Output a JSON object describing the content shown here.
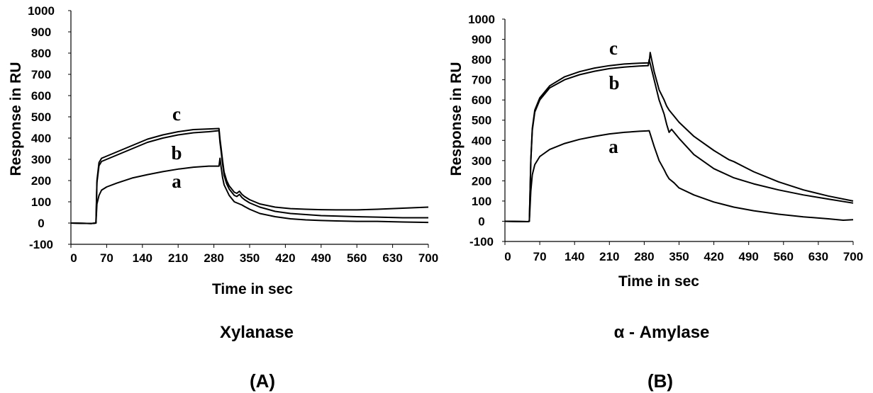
{
  "colors": {
    "line": "#000000",
    "axis": "#000000",
    "background": "#ffffff"
  },
  "chart_data": [
    {
      "type": "line",
      "panel_label": "(A)",
      "name": "Xylanase",
      "xlabel": "Time in sec",
      "ylabel": "Response in RU",
      "xlim": [
        0,
        700
      ],
      "ylim": [
        -100,
        1000
      ],
      "xticks": [
        "0",
        "70",
        "140",
        "210",
        "280",
        "350",
        "420",
        "490",
        "560",
        "630",
        "700"
      ],
      "yticks": [
        "-100",
        "0",
        "100",
        "200",
        "300",
        "400",
        "500",
        "600",
        "700",
        "800",
        "900",
        "1000"
      ],
      "grid": false,
      "series": [
        {
          "name": "a",
          "x": [
            0,
            40,
            49,
            51,
            55,
            60,
            70,
            90,
            120,
            150,
            180,
            210,
            240,
            270,
            290,
            292,
            294,
            297,
            300,
            305,
            310,
            320,
            325,
            330,
            335,
            340,
            350,
            370,
            400,
            430,
            460,
            490,
            520,
            560,
            600,
            650,
            700
          ],
          "y": [
            0,
            -2,
            0,
            90,
            130,
            155,
            170,
            188,
            212,
            228,
            242,
            254,
            263,
            268,
            268,
            305,
            265,
            215,
            180,
            155,
            130,
            100,
            95,
            90,
            85,
            78,
            65,
            45,
            30,
            20,
            15,
            12,
            10,
            8,
            8,
            5,
            3
          ]
        },
        {
          "name": "b",
          "x": [
            0,
            40,
            49,
            51,
            55,
            60,
            70,
            90,
            120,
            150,
            180,
            210,
            240,
            270,
            290,
            292,
            294,
            297,
            300,
            305,
            310,
            320,
            325,
            330,
            335,
            340,
            350,
            370,
            400,
            430,
            460,
            490,
            520,
            560,
            600,
            650,
            700
          ],
          "y": [
            0,
            -2,
            0,
            190,
            270,
            290,
            300,
            320,
            350,
            380,
            400,
            415,
            425,
            430,
            435,
            380,
            340,
            280,
            225,
            185,
            160,
            130,
            125,
            135,
            120,
            110,
            95,
            75,
            55,
            45,
            40,
            35,
            33,
            30,
            28,
            25,
            25
          ]
        },
        {
          "name": "c",
          "x": [
            0,
            40,
            49,
            51,
            55,
            60,
            70,
            90,
            120,
            150,
            180,
            210,
            240,
            270,
            290,
            292,
            294,
            297,
            300,
            305,
            310,
            320,
            325,
            330,
            335,
            340,
            350,
            370,
            400,
            430,
            460,
            490,
            520,
            560,
            600,
            650,
            700
          ],
          "y": [
            0,
            -2,
            0,
            200,
            285,
            305,
            315,
            335,
            365,
            395,
            415,
            430,
            440,
            443,
            445,
            395,
            355,
            295,
            240,
            200,
            175,
            145,
            140,
            150,
            135,
            125,
            110,
            90,
            75,
            68,
            65,
            63,
            62,
            62,
            65,
            70,
            75
          ]
        }
      ]
    },
    {
      "type": "line",
      "panel_label": "(B)",
      "name": "α - Amylase",
      "xlabel": "Time in sec",
      "ylabel": "Response in RU",
      "xlim": [
        0,
        700
      ],
      "ylim": [
        -100,
        1000
      ],
      "xticks": [
        "0",
        "70",
        "140",
        "210",
        "280",
        "350",
        "420",
        "490",
        "560",
        "630",
        "700"
      ],
      "yticks": [
        "-100",
        "0",
        "100",
        "200",
        "300",
        "400",
        "500",
        "600",
        "700",
        "800",
        "900",
        "1000"
      ],
      "grid": false,
      "series": [
        {
          "name": "a",
          "x": [
            0,
            46,
            49,
            52,
            55,
            60,
            70,
            90,
            120,
            150,
            180,
            210,
            240,
            270,
            285,
            290,
            300,
            310,
            320,
            325,
            330,
            340,
            350,
            380,
            420,
            460,
            500,
            550,
            600,
            650,
            680,
            700
          ],
          "y": [
            0,
            -2,
            0,
            150,
            230,
            280,
            320,
            355,
            385,
            405,
            420,
            432,
            440,
            445,
            447,
            448,
            370,
            300,
            255,
            230,
            210,
            190,
            165,
            130,
            95,
            70,
            52,
            35,
            22,
            12,
            5,
            8
          ]
        },
        {
          "name": "b",
          "x": [
            0,
            46,
            49,
            52,
            55,
            60,
            70,
            90,
            120,
            150,
            180,
            210,
            240,
            270,
            285,
            288,
            290,
            300,
            310,
            320,
            325,
            330,
            335,
            340,
            350,
            380,
            420,
            460,
            500,
            550,
            600,
            650,
            700
          ],
          "y": [
            0,
            -2,
            0,
            300,
            450,
            540,
            600,
            660,
            700,
            725,
            742,
            755,
            763,
            768,
            770,
            770,
            800,
            700,
            600,
            530,
            480,
            440,
            455,
            440,
            410,
            330,
            260,
            215,
            185,
            155,
            130,
            110,
            90
          ]
        },
        {
          "name": "c",
          "x": [
            0,
            46,
            49,
            52,
            55,
            60,
            70,
            90,
            120,
            150,
            180,
            210,
            240,
            270,
            285,
            290,
            292,
            300,
            310,
            320,
            325,
            330,
            340,
            350,
            380,
            420,
            440,
            450,
            460,
            480,
            500,
            550,
            600,
            650,
            700
          ],
          "y": [
            0,
            -2,
            0,
            300,
            460,
            550,
            610,
            670,
            715,
            740,
            758,
            770,
            778,
            782,
            783,
            783,
            835,
            740,
            650,
            600,
            570,
            550,
            520,
            490,
            420,
            350,
            320,
            305,
            295,
            270,
            245,
            195,
            155,
            125,
            100
          ]
        }
      ],
      "annotations": []
    }
  ]
}
